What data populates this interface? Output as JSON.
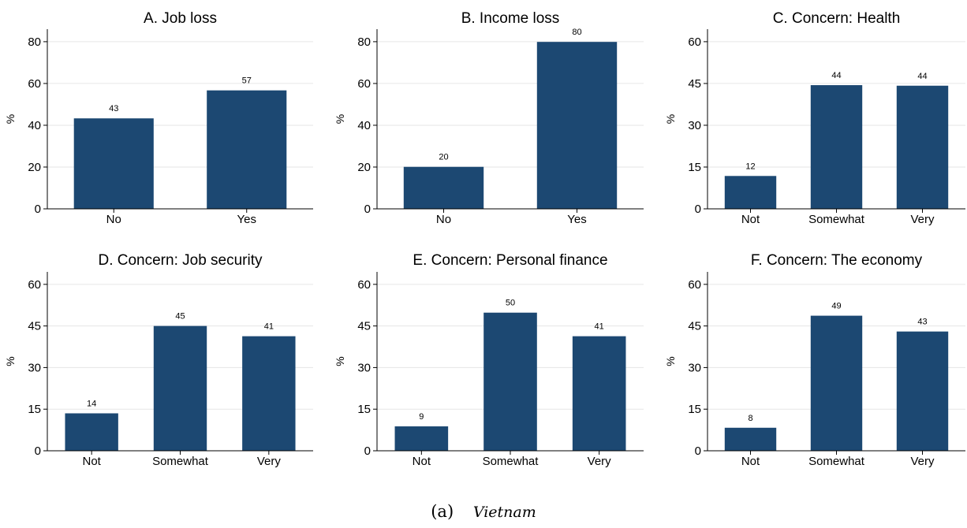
{
  "figure": {
    "caption_label": "(a)",
    "caption_country": "Vietnam",
    "bar_color": "#1c4872",
    "grid_color": "#e6e6e6"
  },
  "chart_data": [
    {
      "type": "bar",
      "title": "A. Job loss",
      "ylabel": "%",
      "categories": [
        "No",
        "Yes"
      ],
      "values": [
        43.3,
        56.7
      ],
      "data_labels": [
        "43",
        "57"
      ],
      "ylim": [
        0,
        86
      ],
      "yticks": [
        0,
        20,
        40,
        60,
        80
      ],
      "grid": true
    },
    {
      "type": "bar",
      "title": "B. Income loss",
      "ylabel": "%",
      "categories": [
        "No",
        "Yes"
      ],
      "values": [
        20.1,
        79.9
      ],
      "data_labels": [
        "20",
        "80"
      ],
      "ylim": [
        0,
        86
      ],
      "yticks": [
        0,
        20,
        40,
        60,
        80
      ],
      "grid": true
    },
    {
      "type": "bar",
      "title": "C. Concern: Health",
      "ylabel": "%",
      "categories": [
        "Not",
        "Somewhat",
        "Very"
      ],
      "values": [
        11.8,
        44.4,
        44.2
      ],
      "data_labels": [
        "12",
        "44",
        "44"
      ],
      "ylim": [
        0,
        64.5
      ],
      "yticks": [
        0,
        15,
        30,
        45,
        60
      ],
      "grid": true
    },
    {
      "type": "bar",
      "title": "D. Concern: Job security",
      "ylabel": "%",
      "categories": [
        "Not",
        "Somewhat",
        "Very"
      ],
      "values": [
        13.5,
        45.0,
        41.3
      ],
      "data_labels": [
        "14",
        "45",
        "41"
      ],
      "ylim": [
        0,
        64.5
      ],
      "yticks": [
        0,
        15,
        30,
        45,
        60
      ],
      "grid": true
    },
    {
      "type": "bar",
      "title": "E. Concern: Personal finance",
      "ylabel": "%",
      "categories": [
        "Not",
        "Somewhat",
        "Very"
      ],
      "values": [
        8.8,
        49.8,
        41.3
      ],
      "data_labels": [
        "9",
        "50",
        "41"
      ],
      "ylim": [
        0,
        64.5
      ],
      "yticks": [
        0,
        15,
        30,
        45,
        60
      ],
      "grid": true
    },
    {
      "type": "bar",
      "title": "F. Concern: The economy",
      "ylabel": "%",
      "categories": [
        "Not",
        "Somewhat",
        "Very"
      ],
      "values": [
        8.3,
        48.7,
        43.0
      ],
      "data_labels": [
        "8",
        "49",
        "43"
      ],
      "ylim": [
        0,
        64.5
      ],
      "yticks": [
        0,
        15,
        30,
        45,
        60
      ],
      "grid": true
    }
  ]
}
